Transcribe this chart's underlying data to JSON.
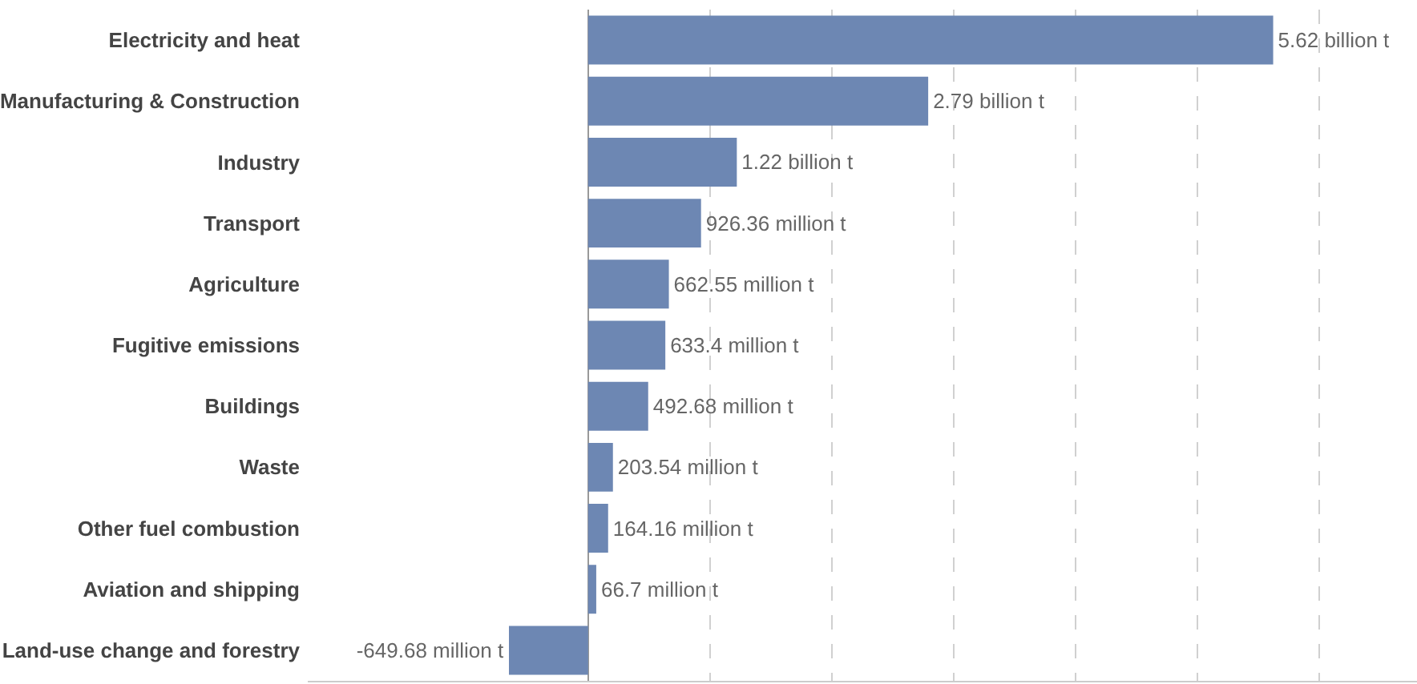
{
  "chart_data": {
    "type": "bar",
    "orientation": "horizontal",
    "categories": [
      "Electricity and heat",
      "Manufacturing & Construction",
      "Industry",
      "Transport",
      "Agriculture",
      "Fugitive emissions",
      "Buildings",
      "Waste",
      "Other fuel combustion",
      "Aviation and shipping",
      "Land-use change and forestry"
    ],
    "values": [
      5620000000,
      2790000000,
      1220000000,
      926360000,
      662550000,
      633400000,
      492680000,
      203540000,
      164160000,
      66700000,
      -649680000
    ],
    "value_labels": [
      "5.62 billion t",
      "2.79 billion t",
      "1.22 billion t",
      "926.36 million t",
      "662.55 million t",
      "633.4 million t",
      "492.68 million t",
      "203.54 million t",
      "164.16 million t",
      "66.7 million t",
      "-649.68 million t"
    ],
    "color": "#6d87b3",
    "xlim": [
      -2300000000,
      6800000000
    ],
    "xticks": [
      {
        "value": 1000000000,
        "label": null
      },
      {
        "value": 2000000000,
        "label": null
      },
      {
        "value": 3000000000,
        "label": null
      },
      {
        "value": 4000000000,
        "label": null
      },
      {
        "value": 5000000000,
        "label": null
      },
      {
        "value": 6000000000,
        "label": null
      }
    ],
    "grid": "x",
    "tick_labels": "y"
  }
}
